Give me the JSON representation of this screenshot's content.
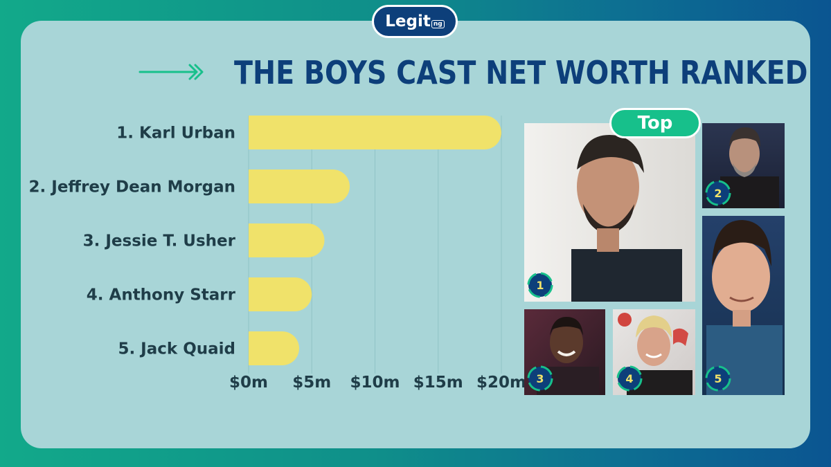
{
  "header": {
    "logo_text": "Legit",
    "logo_tld": "ng",
    "title": "THE BOYS CAST NET WORTH RANKED"
  },
  "badge": {
    "label": "Top"
  },
  "photos": [
    {
      "rank": "1",
      "icon": "karl-urban-photo"
    },
    {
      "rank": "2",
      "icon": "jeffrey-dean-morgan-photo"
    },
    {
      "rank": "3",
      "icon": "jessie-t-usher-photo"
    },
    {
      "rank": "4",
      "icon": "anthony-starr-photo"
    },
    {
      "rank": "5",
      "icon": "jack-quaid-photo"
    }
  ],
  "colors": {
    "background_start": "#12a98a",
    "background_end": "#0b5591",
    "card": "#a8d5d7",
    "bar": "#f0e26a",
    "title": "#0d3f7a",
    "badge": "#17c08b",
    "rank_ring": "#17c08b"
  },
  "chart_data": {
    "type": "bar",
    "orientation": "horizontal",
    "categories": [
      "1. Karl Urban",
      "2. Jeffrey Dean Morgan",
      "3. Jessie T. Usher",
      "4. Anthony Starr",
      "5. Jack Quaid"
    ],
    "values": [
      20,
      8,
      6,
      5,
      4
    ],
    "unit": "$m",
    "xlim": [
      0,
      20
    ],
    "xticks": [
      0,
      5,
      10,
      15,
      20
    ],
    "xtick_labels": [
      "$0m",
      "$5m",
      "$10m",
      "$15m",
      "$20m"
    ],
    "grid": true,
    "legend": "none"
  }
}
